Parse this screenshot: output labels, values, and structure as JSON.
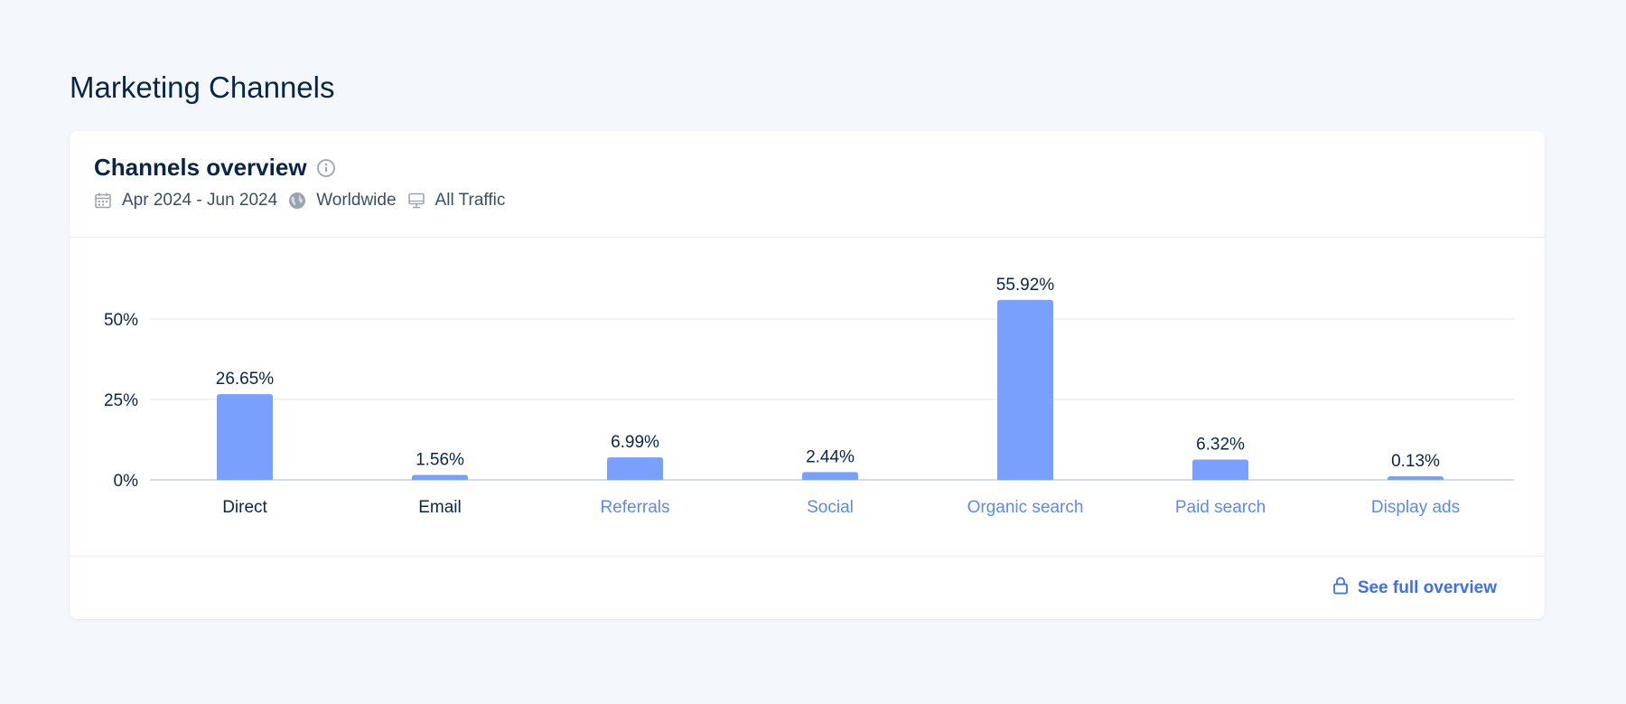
{
  "page": {
    "title": "Marketing Channels"
  },
  "card": {
    "title": "Channels overview",
    "meta": {
      "date_range": "Apr 2024 - Jun 2024",
      "region": "Worldwide",
      "traffic": "All Traffic"
    },
    "footer": {
      "link_label": "See full overview"
    }
  },
  "icons": {
    "info": "info-icon",
    "calendar": "calendar-icon",
    "globe": "globe-icon",
    "monitor": "monitor-icon",
    "lock": "lock-icon"
  },
  "colors": {
    "bar": "#7aa0fd",
    "link": "#3b6ef0",
    "text_dark": "#09264a",
    "grid": "#e3e7ee"
  },
  "chart_data": {
    "type": "bar",
    "categories": [
      "Direct",
      "Email",
      "Referrals",
      "Social",
      "Organic search",
      "Paid search",
      "Display ads"
    ],
    "values": [
      26.65,
      1.56,
      6.99,
      2.44,
      55.92,
      6.32,
      0.13
    ],
    "value_labels": [
      "26.65%",
      "1.56%",
      "6.99%",
      "2.44%",
      "55.92%",
      "6.32%",
      "0.13%"
    ],
    "linked_categories": [
      "Referrals",
      "Social",
      "Organic search",
      "Paid search",
      "Display ads"
    ],
    "yticks": [
      0,
      25,
      50
    ],
    "ytick_labels": [
      "0%",
      "25%",
      "50%"
    ],
    "ylim": [
      0,
      60
    ],
    "grid": true,
    "title": "",
    "xlabel": "",
    "ylabel": ""
  }
}
